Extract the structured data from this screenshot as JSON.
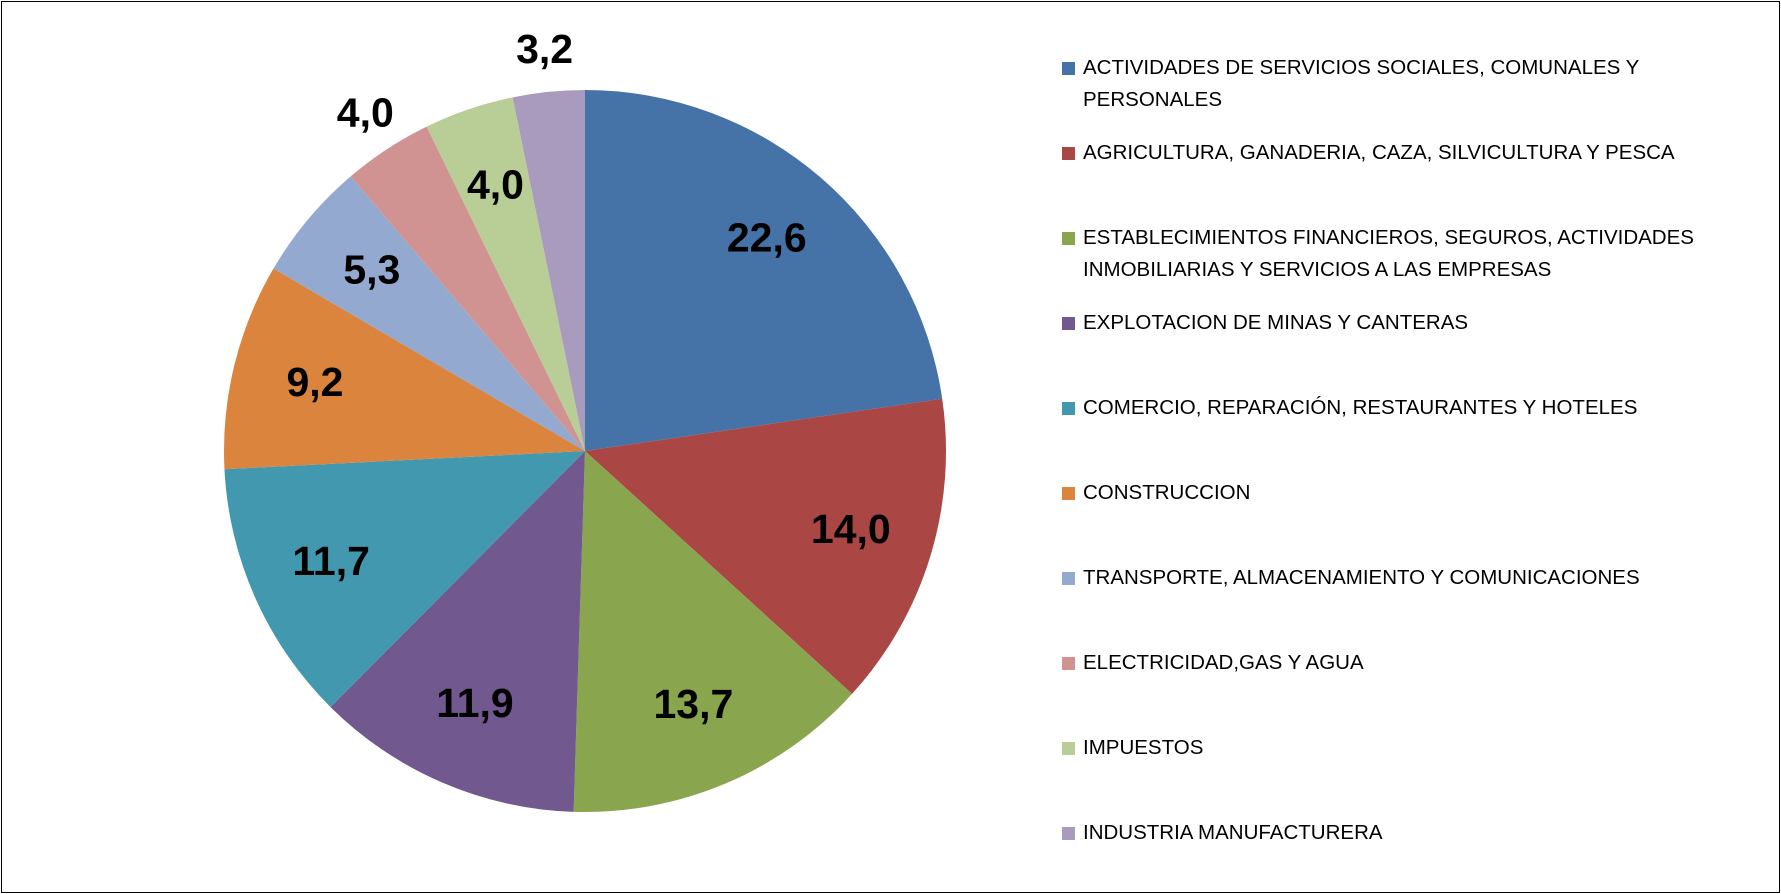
{
  "chart_data": {
    "type": "pie",
    "categories": [
      "ACTIVIDADES DE SERVICIOS SOCIALES, COMUNALES Y PERSONALES",
      "AGRICULTURA, GANADERIA, CAZA, SILVICULTURA Y PESCA",
      "ESTABLECIMIENTOS FINANCIEROS, SEGUROS, ACTIVIDADES INMOBILIARIAS Y SERVICIOS A LAS EMPRESAS",
      "EXPLOTACION DE MINAS Y CANTERAS",
      "COMERCIO, REPARACIÓN, RESTAURANTES Y HOTELES",
      "CONSTRUCCION",
      "TRANSPORTE, ALMACENAMIENTO Y COMUNICACIONES",
      "ELECTRICIDAD,GAS Y AGUA",
      "IMPUESTOS",
      "INDUSTRIA MANUFACTURERA"
    ],
    "values": [
      22.6,
      14.0,
      13.7,
      11.9,
      11.7,
      9.2,
      5.3,
      4.0,
      4.0,
      3.2
    ],
    "value_labels": [
      "22,6",
      "14,0",
      "13,7",
      "11,9",
      "11,7",
      "9,2",
      "5,3",
      "4,0",
      "4,0",
      "3,2"
    ],
    "colors": [
      "#4572a7",
      "#aa4643",
      "#89a54e",
      "#71588f",
      "#4198af",
      "#db843d",
      "#93a9cf",
      "#d19392",
      "#b9cd96",
      "#a99bbd"
    ],
    "legend": "right"
  }
}
